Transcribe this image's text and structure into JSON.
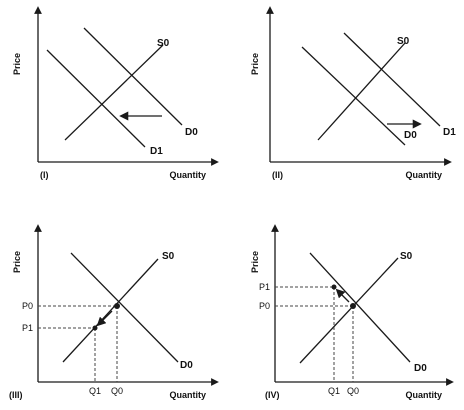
{
  "panels": [
    {
      "id": "I",
      "roman": "(I)",
      "y_axis": "Price",
      "x_axis": "Quantity",
      "curves": [
        "S0",
        "D0",
        "D1"
      ]
    },
    {
      "id": "II",
      "roman": "(II)",
      "y_axis": "Price",
      "x_axis": "Quantity",
      "curves": [
        "S0",
        "D0",
        "D1"
      ]
    },
    {
      "id": "III",
      "roman": "(III)",
      "y_axis": "Price",
      "x_axis": "Quantity",
      "curves": [
        "S0",
        "D0"
      ],
      "price_labels": [
        "P0",
        "P1"
      ],
      "quantity_labels": [
        "Q1",
        "Q0"
      ]
    },
    {
      "id": "IV",
      "roman": "(IV)",
      "y_axis": "Price",
      "x_axis": "Quantity",
      "curves": [
        "S0",
        "D0"
      ],
      "price_labels": [
        "P1",
        "P0"
      ],
      "quantity_labels": [
        "Q1",
        "Q0"
      ]
    }
  ],
  "colors": {
    "line": "#1a1a1a",
    "dash": "#444444"
  }
}
